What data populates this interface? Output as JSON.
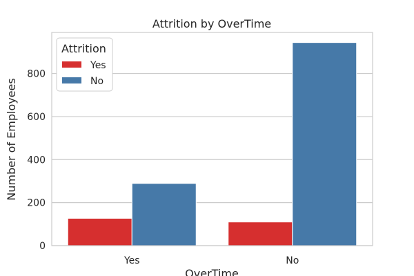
{
  "chart_data": {
    "type": "bar",
    "title": "Attrition by OverTime",
    "xlabel": "OverTime",
    "ylabel": "Number of Employees",
    "categories": [
      "Yes",
      "No"
    ],
    "series": [
      {
        "name": "Yes",
        "values": [
          127,
          110
        ],
        "color": "#d62f2f"
      },
      {
        "name": "No",
        "values": [
          289,
          944
        ],
        "color": "#4679a8"
      }
    ],
    "ylim": [
      0,
      991
    ],
    "yticks": [
      0,
      200,
      400,
      600,
      800
    ],
    "grid": true,
    "legend": {
      "title": "Attrition",
      "placement": "top-left"
    }
  }
}
